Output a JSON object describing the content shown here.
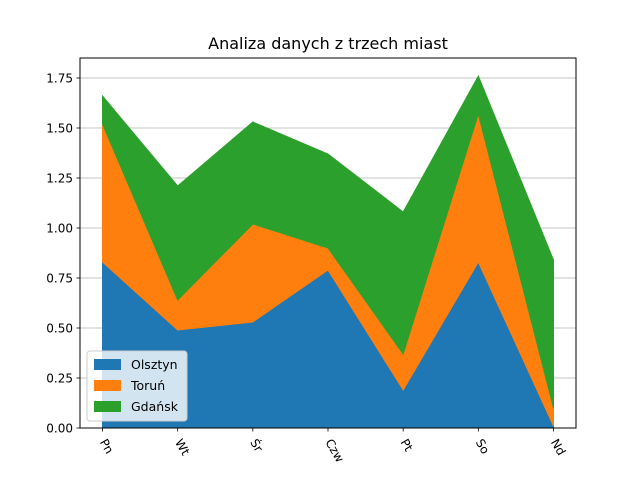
{
  "chart_data": {
    "type": "area",
    "stacked": true,
    "title": "Analiza danych z trzech miast",
    "xlabel": "",
    "ylabel": "",
    "categories": [
      "Pn",
      "Wt",
      "Śr",
      "Czw",
      "Pt",
      "So",
      "Nd"
    ],
    "ylim": [
      0,
      1.85
    ],
    "yticks": [
      0.0,
      0.25,
      0.5,
      0.75,
      1.0,
      1.25,
      1.5,
      1.75
    ],
    "ytick_labels": [
      "0.00",
      "0.25",
      "0.50",
      "0.75",
      "1.00",
      "1.25",
      "1.50",
      "1.75"
    ],
    "grid": "y",
    "legend_position": "lower-left",
    "xtick_rotation": -60,
    "series": [
      {
        "name": "Olsztyn",
        "color": "#1f77b4",
        "values": [
          0.83,
          0.49,
          0.53,
          0.79,
          0.19,
          0.83,
          0.01
        ]
      },
      {
        "name": "Toruń",
        "color": "#ff7f0e",
        "values": [
          0.69,
          0.15,
          0.49,
          0.11,
          0.18,
          0.74,
          0.09
        ]
      },
      {
        "name": "Gdańsk",
        "color": "#2ca02c",
        "values": [
          0.14,
          0.57,
          0.51,
          0.47,
          0.71,
          0.19,
          0.74
        ]
      }
    ]
  }
}
